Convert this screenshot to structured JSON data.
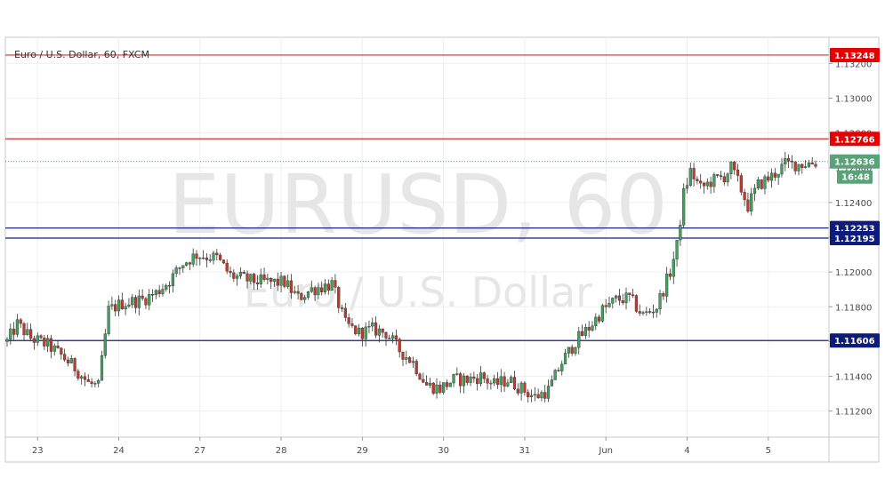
{
  "chart_data": {
    "type": "candlestick",
    "title": "Euro / U.S. Dollar, 60, FXCM",
    "watermark_symbol": "EURUSD, 60",
    "watermark_name": "Euro / U.S. Dollar",
    "ylim": [
      1.1105,
      1.1335
    ],
    "y_ticks": [
      "1.11200",
      "1.11400",
      "1.11600",
      "1.11800",
      "1.12000",
      "1.12200",
      "1.12400",
      "1.12600",
      "1.12800",
      "1.13000",
      "1.13200"
    ],
    "y_tick_values": [
      1.112,
      1.114,
      1.116,
      1.118,
      1.12,
      1.122,
      1.124,
      1.126,
      1.128,
      1.13,
      1.132
    ],
    "x_tick_labels": [
      "23",
      "24",
      "27",
      "28",
      "29",
      "30",
      "31",
      "Jun",
      "4",
      "5"
    ],
    "x_tick_bars": [
      9,
      33,
      57,
      81,
      105,
      129,
      153,
      177,
      201,
      225
    ],
    "bar_count": 240,
    "grid": true,
    "colors": {
      "up": "#41a05b",
      "down": "#c0392b",
      "resistance": "#d32f2f",
      "support": "#1a237e",
      "current": "#5aa27a",
      "label_red": "#e60000",
      "label_blue": "#0d1b7a"
    },
    "levels": [
      {
        "value": 1.13248,
        "label": "1.13248",
        "kind": "resistance"
      },
      {
        "value": 1.12766,
        "label": "1.12766",
        "kind": "resistance"
      },
      {
        "value": 1.12253,
        "label": "1.12253",
        "kind": "support"
      },
      {
        "value": 1.12195,
        "label": "1.12195",
        "kind": "support"
      },
      {
        "value": 1.11606,
        "label": "1.11606",
        "kind": "support"
      }
    ],
    "current_price": {
      "value": 1.12636,
      "label": "1.12636",
      "countdown": "16:48"
    },
    "close_path": [
      [
        0,
        1.116
      ],
      [
        3,
        1.117
      ],
      [
        7,
        1.1162
      ],
      [
        12,
        1.1158
      ],
      [
        16,
        1.1152
      ],
      [
        20,
        1.1145
      ],
      [
        24,
        1.1136
      ],
      [
        27,
        1.1134
      ],
      [
        30,
        1.1178
      ],
      [
        34,
        1.1182
      ],
      [
        40,
        1.1184
      ],
      [
        44,
        1.1188
      ],
      [
        48,
        1.1195
      ],
      [
        52,
        1.1205
      ],
      [
        56,
        1.121
      ],
      [
        62,
        1.1208
      ],
      [
        66,
        1.1198
      ],
      [
        72,
        1.1195
      ],
      [
        78,
        1.1194
      ],
      [
        82,
        1.1194
      ],
      [
        86,
        1.1185
      ],
      [
        90,
        1.119
      ],
      [
        96,
        1.1193
      ],
      [
        100,
        1.117
      ],
      [
        104,
        1.1165
      ],
      [
        108,
        1.1167
      ],
      [
        112,
        1.1165
      ],
      [
        116,
        1.1155
      ],
      [
        120,
        1.1148
      ],
      [
        124,
        1.1135
      ],
      [
        128,
        1.1133
      ],
      [
        132,
        1.1138
      ],
      [
        136,
        1.1138
      ],
      [
        140,
        1.114
      ],
      [
        144,
        1.1135
      ],
      [
        148,
        1.1138
      ],
      [
        152,
        1.1133
      ],
      [
        156,
        1.1128
      ],
      [
        160,
        1.1132
      ],
      [
        164,
        1.1148
      ],
      [
        168,
        1.116
      ],
      [
        172,
        1.1168
      ],
      [
        176,
        1.1178
      ],
      [
        180,
        1.1184
      ],
      [
        184,
        1.1185
      ],
      [
        188,
        1.1175
      ],
      [
        192,
        1.118
      ],
      [
        196,
        1.12
      ],
      [
        198,
        1.1215
      ],
      [
        200,
        1.1245
      ],
      [
        202,
        1.1258
      ],
      [
        205,
        1.1248
      ],
      [
        208,
        1.1252
      ],
      [
        212,
        1.1255
      ],
      [
        214,
        1.126
      ],
      [
        216,
        1.1252
      ],
      [
        219,
        1.1238
      ],
      [
        222,
        1.125
      ],
      [
        226,
        1.1255
      ],
      [
        230,
        1.1262
      ],
      [
        234,
        1.1262
      ],
      [
        239,
        1.1263
      ]
    ]
  }
}
